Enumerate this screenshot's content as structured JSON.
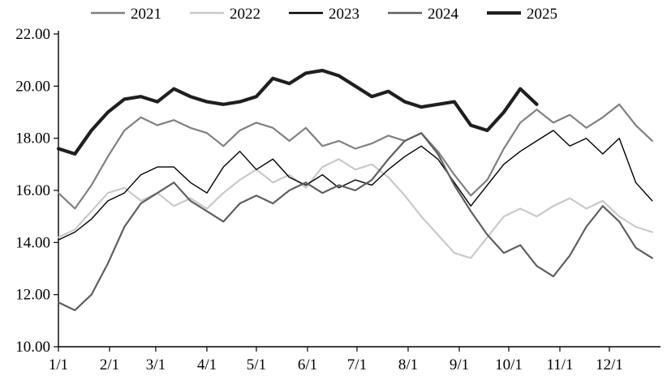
{
  "chart_data": {
    "type": "line",
    "title": "",
    "xlabel": "",
    "ylabel": "",
    "grid": false,
    "legend_position": "top",
    "ylim": [
      10,
      22
    ],
    "y_ticks": [
      10,
      12,
      14,
      16,
      18,
      20,
      22
    ],
    "y_tick_decimals": 2,
    "x_range": [
      1,
      366
    ],
    "x_tick_days": [
      1,
      32,
      60,
      91,
      121,
      152,
      182,
      213,
      244,
      274,
      305,
      335
    ],
    "x_tick_labels": [
      "1/1",
      "2/1",
      "3/1",
      "4/1",
      "5/1",
      "6/1",
      "7/1",
      "8/1",
      "9/1",
      "10/1",
      "11/1",
      "12/1"
    ],
    "x_days": [
      1,
      11,
      21,
      31,
      41,
      51,
      61,
      71,
      81,
      91,
      101,
      111,
      121,
      131,
      141,
      151,
      161,
      171,
      181,
      191,
      201,
      211,
      221,
      231,
      241,
      251,
      261,
      271,
      281,
      291,
      301,
      311,
      321,
      331,
      341,
      351,
      361
    ],
    "series": [
      {
        "name": "2021",
        "color": "#808080",
        "width": 2.2,
        "values": [
          15.9,
          15.3,
          16.2,
          17.3,
          18.3,
          18.8,
          18.5,
          18.7,
          18.4,
          18.2,
          17.7,
          18.3,
          18.6,
          18.4,
          17.9,
          18.4,
          17.7,
          17.9,
          17.6,
          17.8,
          18.1,
          17.9,
          18.2,
          17.5,
          16.6,
          15.8,
          16.4,
          17.6,
          18.6,
          19.1,
          18.6,
          18.9,
          18.4,
          18.8,
          19.3,
          18.5,
          17.9
        ]
      },
      {
        "name": "2022",
        "color": "#c9c9c9",
        "width": 2.2,
        "values": [
          14.2,
          14.5,
          15.2,
          15.9,
          16.1,
          15.6,
          15.9,
          15.4,
          15.7,
          15.3,
          15.9,
          16.4,
          16.8,
          16.3,
          16.6,
          16.1,
          16.9,
          17.2,
          16.8,
          17.0,
          16.5,
          15.8,
          15.0,
          14.3,
          13.6,
          13.4,
          14.2,
          15.0,
          15.3,
          15.0,
          15.4,
          15.7,
          15.3,
          15.6,
          15.0,
          14.6,
          14.4
        ]
      },
      {
        "name": "2023",
        "color": "#000000",
        "width": 1.4,
        "values": [
          14.1,
          14.4,
          14.9,
          15.6,
          15.9,
          16.6,
          16.9,
          16.9,
          16.3,
          15.9,
          16.9,
          17.5,
          16.8,
          17.2,
          16.5,
          16.2,
          16.6,
          16.1,
          16.4,
          16.2,
          16.8,
          17.3,
          17.7,
          17.2,
          16.3,
          15.4,
          16.2,
          17.0,
          17.5,
          17.9,
          18.3,
          17.7,
          18.0,
          17.4,
          18.0,
          16.3,
          15.6
        ]
      },
      {
        "name": "2024",
        "color": "#5f5f5f",
        "width": 2.2,
        "values": [
          11.7,
          11.4,
          12.0,
          13.2,
          14.6,
          15.5,
          15.9,
          16.3,
          15.6,
          15.2,
          14.8,
          15.5,
          15.8,
          15.5,
          16.0,
          16.3,
          15.9,
          16.2,
          16.0,
          16.4,
          17.2,
          17.9,
          18.2,
          17.4,
          16.2,
          15.2,
          14.3,
          13.6,
          13.9,
          13.1,
          12.7,
          13.5,
          14.6,
          15.4,
          14.8,
          13.8,
          13.4
        ]
      },
      {
        "name": "2025",
        "color": "#1f1f1f",
        "width": 4.2,
        "values": [
          17.6,
          17.4,
          18.3,
          19.0,
          19.5,
          19.6,
          19.4,
          19.9,
          19.6,
          19.4,
          19.3,
          19.4,
          19.6,
          20.3,
          20.1,
          20.5,
          20.6,
          20.4,
          20.0,
          19.6,
          19.8,
          19.4,
          19.2,
          19.3,
          19.4,
          18.5,
          18.3,
          19.0,
          19.9,
          19.3,
          null,
          null,
          null,
          null,
          null,
          null,
          null
        ]
      }
    ]
  }
}
